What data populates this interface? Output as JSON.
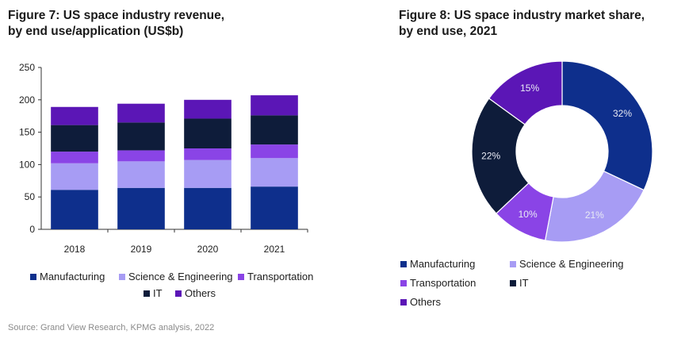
{
  "colors": {
    "Manufacturing": "#0e2f8c",
    "Science & Engineering": "#a79cf4",
    "Transportation": "#8a44e6",
    "IT": "#0e1c3a",
    "Others": "#5b16b6"
  },
  "chart_data": [
    {
      "type": "bar",
      "stacked": true,
      "title": "Figure 7: US space industry revenue,\nby end use/application (US$b)",
      "categories": [
        "2018",
        "2019",
        "2020",
        "2021"
      ],
      "series": [
        {
          "name": "Manufacturing",
          "values": [
            61,
            64,
            64,
            66
          ]
        },
        {
          "name": "Science & Engineering",
          "values": [
            41,
            41,
            43,
            44
          ]
        },
        {
          "name": "Transportation",
          "values": [
            18,
            17,
            18,
            21
          ]
        },
        {
          "name": "IT",
          "values": [
            41,
            43,
            46,
            45
          ]
        },
        {
          "name": "Others",
          "values": [
            28,
            29,
            29,
            31
          ]
        }
      ],
      "y_ticks": [
        "0",
        "50",
        "100",
        "150",
        "200",
        "250"
      ],
      "ylim": [
        0,
        250
      ],
      "grid": false,
      "legend_position": "bottom",
      "legend_rows": [
        [
          "Manufacturing",
          "Science & Engineering",
          "Transportation"
        ],
        [
          "IT",
          "Others"
        ]
      ]
    },
    {
      "type": "pie",
      "donut": true,
      "title": "Figure 8: US space industry market share,\nby end use, 2021",
      "slices": [
        {
          "name": "Manufacturing",
          "value": 32,
          "label": "32%"
        },
        {
          "name": "Science & Engineering",
          "value": 21,
          "label": "21%"
        },
        {
          "name": "Transportation",
          "value": 10,
          "label": "10%"
        },
        {
          "name": "IT",
          "value": 22,
          "label": "22%"
        },
        {
          "name": "Others",
          "value": 15,
          "label": "15%"
        }
      ],
      "legend_position": "bottom-left",
      "legend_rows": [
        [
          "Manufacturing",
          "Science & Engineering"
        ],
        [
          "Transportation",
          "IT"
        ],
        [
          "Others"
        ]
      ]
    }
  ],
  "source_text": "Source: Grand View Research, KPMG analysis, 2022"
}
